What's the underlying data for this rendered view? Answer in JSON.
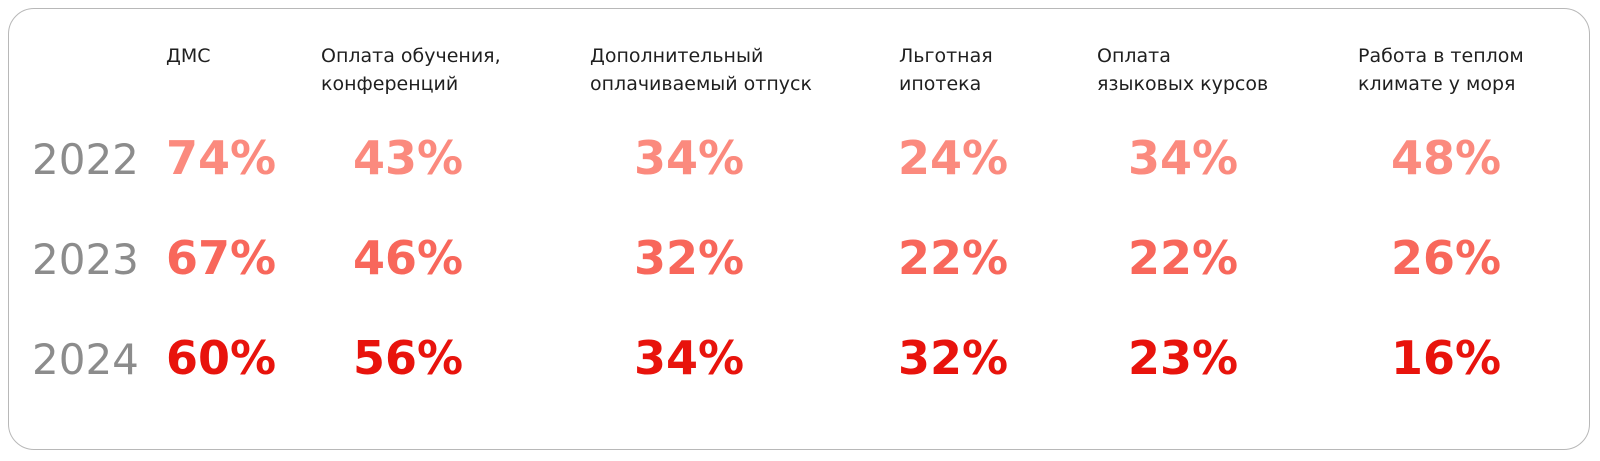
{
  "chart_data": {
    "type": "table",
    "columns": [
      "ДМС",
      "Оплата обучения,\nконференций",
      "Дополнительный\nоплачиваемый отпуск",
      "Льготная\nипотека",
      "Оплата\nязыковых курсов",
      "Работа в теплом\nклимате у моря"
    ],
    "rows": [
      {
        "year": "2022",
        "values": [
          "74%",
          "43%",
          "34%",
          "24%",
          "34%",
          "48%"
        ]
      },
      {
        "year": "2023",
        "values": [
          "67%",
          "46%",
          "32%",
          "22%",
          "22%",
          "26%"
        ]
      },
      {
        "year": "2024",
        "values": [
          "60%",
          "56%",
          "34%",
          "32%",
          "23%",
          "16%"
        ]
      }
    ]
  },
  "colors": {
    "row_2022": "#fb8a7e",
    "row_2023": "#f8675b",
    "row_2024": "#e8130c",
    "year": "#8c8c8c",
    "header": "#1f1f1f",
    "border": "#b8b8b8"
  }
}
